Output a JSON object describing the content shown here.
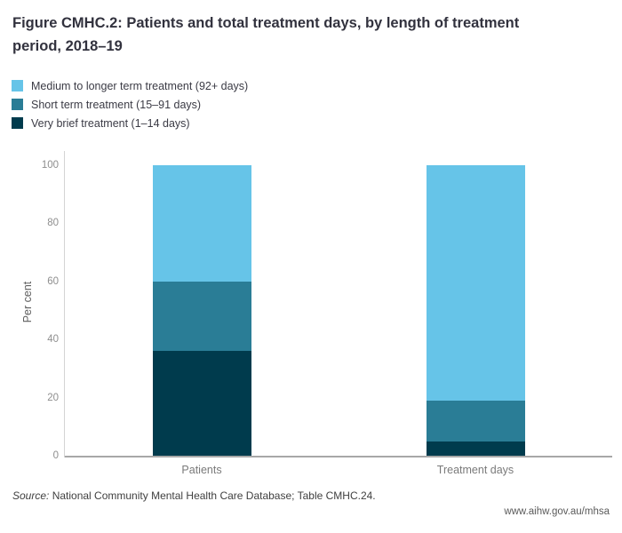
{
  "title": "Figure CMHC.2: Patients and total treatment days, by length of treatment period, 2018–19",
  "footer": {
    "source_label": "Source:",
    "source_text": " National Community Mental Health Care Database; Table CMHC.24.",
    "url": "www.aihw.gov.au/mhsa"
  },
  "chart_data": {
    "type": "bar",
    "stacked": true,
    "title": "Figure CMHC.2: Patients and total treatment days, by length of treatment period, 2018–19",
    "categories": [
      "Patients",
      "Treatment days"
    ],
    "series": [
      {
        "name": "Medium to longer term treatment (92+ days)",
        "color": "#66C4E8",
        "values": [
          40,
          81
        ]
      },
      {
        "name": "Short term treatment (15–91 days)",
        "color": "#2A7D96",
        "values": [
          24,
          14
        ]
      },
      {
        "name": "Very brief treatment (1–14 days)",
        "color": "#003B4D",
        "values": [
          36,
          5
        ]
      }
    ],
    "xlabel": "",
    "ylabel": "Per cent",
    "ylim": [
      0,
      100
    ],
    "yticks": [
      0,
      20,
      40,
      60,
      80,
      100
    ],
    "grid": false,
    "legend_position": "top-left"
  }
}
